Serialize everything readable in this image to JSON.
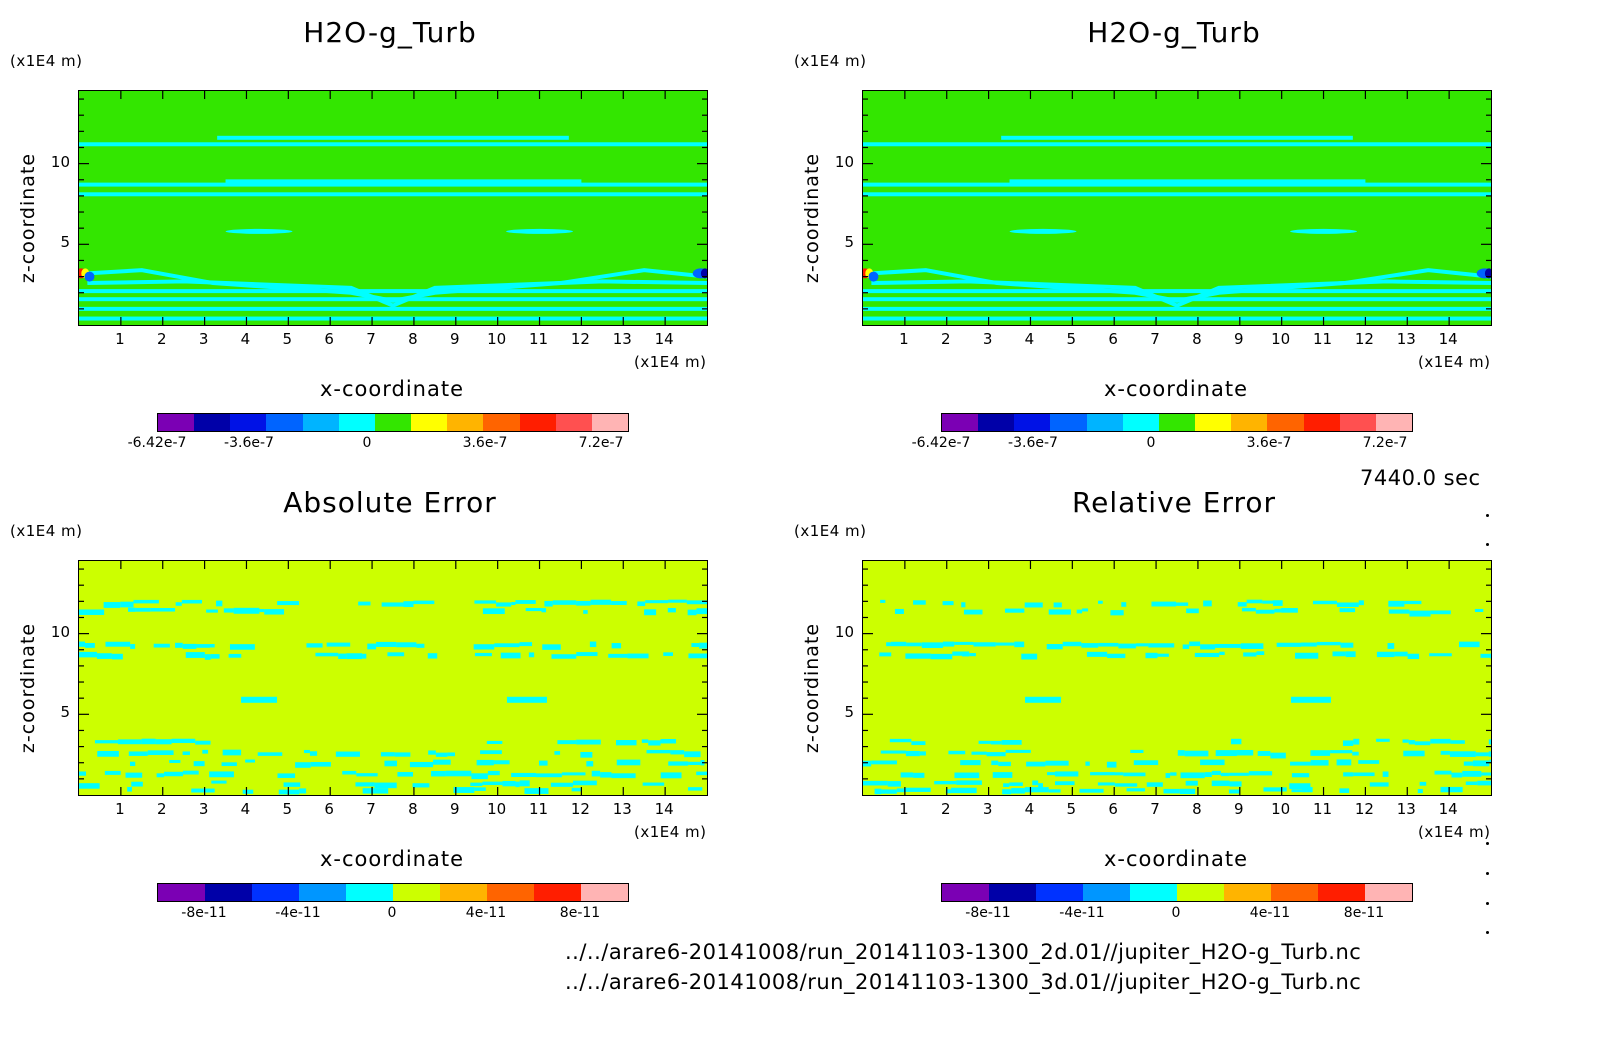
{
  "panels": [
    {
      "title": "H2O-g_Turb",
      "type": "field",
      "colorbar_labels": [
        "-6.42e-7",
        "-3.6e-7",
        "0",
        "3.6e-7",
        "7.2e-7"
      ]
    },
    {
      "title": "H2O-g_Turb",
      "type": "field",
      "colorbar_labels": [
        "-6.42e-7",
        "-3.6e-7",
        "0",
        "3.6e-7",
        "7.2e-7"
      ]
    },
    {
      "title": "Absolute Error",
      "type": "error",
      "colorbar_labels": [
        "-8e-11",
        "-4e-11",
        "0",
        "4e-11",
        "8e-11"
      ]
    },
    {
      "title": "Relative Error",
      "type": "error",
      "colorbar_labels": [
        "-8e-11",
        "-4e-11",
        "0",
        "4e-11",
        "8e-11"
      ]
    }
  ],
  "axes": {
    "xlabel": "x-coordinate",
    "ylabel": "z-coordinate",
    "unit": "(x1E4 m)",
    "xticks": [
      "1",
      "2",
      "3",
      "4",
      "5",
      "6",
      "7",
      "8",
      "9",
      "10",
      "11",
      "12",
      "13",
      "14"
    ],
    "yticks": [
      "5",
      "10"
    ]
  },
  "colormaps": {
    "field": [
      "#7b00b4",
      "#0000a8",
      "#0012e6",
      "#0064ff",
      "#00b4ff",
      "#00ffff",
      "#33e600",
      "#ffff00",
      "#ffb400",
      "#ff6400",
      "#ff1e00",
      "#ff5050",
      "#ffb4b4"
    ],
    "error": [
      "#7b00b4",
      "#0000a8",
      "#0032ff",
      "#0096ff",
      "#00ffff",
      "#ccff00",
      "#ffb400",
      "#ff6400",
      "#ff1e00",
      "#ffb4b4"
    ]
  },
  "time_label": "7440.0 sec",
  "file_paths": [
    "../../arare6-20141008/run_20141103-1300_2d.01//jupiter_H2O-g_Turb.nc",
    "../../arare6-20141008/run_20141103-1300_3d.01//jupiter_H2O-g_Turb.nc"
  ],
  "chart_data": [
    {
      "type": "heatmap",
      "title": "H2O-g_Turb",
      "xlabel": "x-coordinate",
      "ylabel": "z-coordinate",
      "xlim": [
        0,
        15
      ],
      "ylim": [
        0,
        14.5
      ],
      "background_value": 0,
      "bands_z": [
        1.1,
        1.8,
        2.4,
        3.0,
        8.2,
        9.0,
        11.6
      ]
    },
    {
      "type": "heatmap",
      "title": "H2O-g_Turb",
      "xlabel": "x-coordinate",
      "ylabel": "z-coordinate",
      "xlim": [
        0,
        15
      ],
      "ylim": [
        0,
        14.5
      ],
      "background_value": 0,
      "bands_z": [
        1.1,
        1.8,
        2.4,
        3.0,
        8.2,
        9.0,
        11.6
      ]
    },
    {
      "type": "heatmap",
      "title": "Absolute Error",
      "xlabel": "x-coordinate",
      "ylabel": "z-coordinate",
      "xlim": [
        0,
        15
      ],
      "ylim": [
        0,
        14.5
      ],
      "background_value": 0
    },
    {
      "type": "heatmap",
      "title": "Relative Error",
      "xlabel": "x-coordinate",
      "ylabel": "z-coordinate",
      "xlim": [
        0,
        15
      ],
      "ylim": [
        0,
        14.5
      ],
      "background_value": 0
    }
  ]
}
